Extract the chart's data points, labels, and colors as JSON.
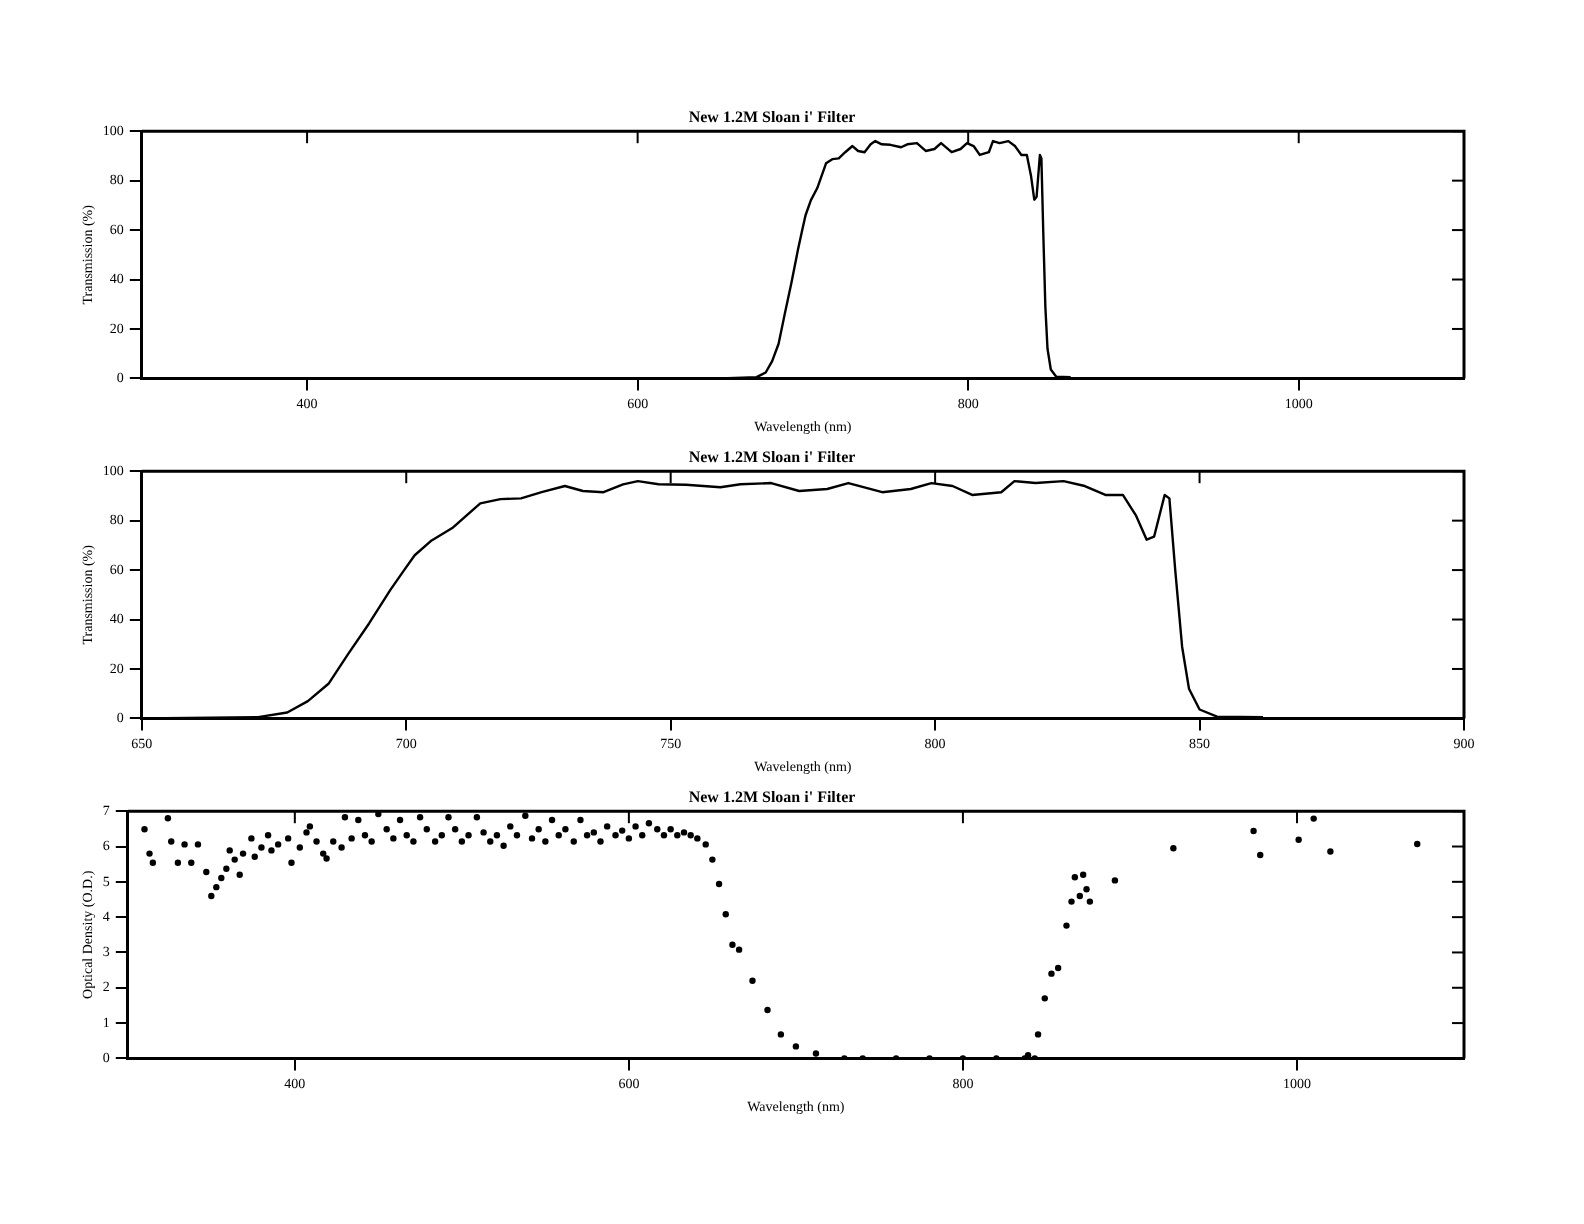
{
  "chart_data": [
    {
      "type": "line",
      "title": "New 1.2M Sloan i' Filter",
      "xlabel": "Wavelength (nm)",
      "ylabel": "Transmission (%)",
      "xlim": [
        300,
        1100
      ],
      "xticks": [
        400,
        600,
        800,
        1000
      ],
      "ylim": [
        0,
        100
      ],
      "yticks": [
        0,
        20,
        40,
        60,
        80,
        100
      ],
      "grid": false,
      "legend": false,
      "marker": "none",
      "line_style": "solid",
      "series": [
        {
          "color": "#000000",
          "x": [
            350,
            650,
            672,
            677.5,
            681.4,
            685.3,
            689,
            693,
            697,
            699.6,
            701.6,
            704.8,
            708.7,
            714,
            717.8,
            721.7,
            725.6,
            730,
            733.4,
            737.3,
            741,
            743.8,
            747.7,
            752.9,
            759.4,
            763.2,
            769,
            774.3,
            779.6,
            783.6,
            790,
            795.4,
            799.3,
            803.3,
            807,
            812.5,
            815,
            819,
            824.3,
            828.3,
            832.2,
            835.5,
            838,
            840,
            841.4,
            843.4,
            844.3,
            845.4,
            846.7,
            848,
            850,
            853.3,
            862
          ],
          "values": [
            0,
            0,
            0.5,
            2.4,
            7,
            14,
            26,
            38.5,
            52,
            60,
            66,
            72,
            77,
            87,
            88.7,
            89,
            91.5,
            94,
            92,
            91.5,
            94.7,
            96,
            94.7,
            94.5,
            93.5,
            94.7,
            95.2,
            92,
            92.8,
            95.2,
            91.5,
            92.8,
            95.2,
            94,
            90.4,
            91.5,
            96,
            95.2,
            96,
            94,
            90.4,
            90.4,
            82,
            72.3,
            73.5,
            90.4,
            89,
            60,
            29,
            12,
            3.6,
            0.7,
            0.5
          ]
        }
      ]
    },
    {
      "type": "line",
      "title": "New 1.2M Sloan i' Filter",
      "xlabel": "Wavelength (nm)",
      "ylabel": "Transmission (%)",
      "xlim": [
        650,
        900
      ],
      "xticks": [
        650,
        700,
        750,
        800,
        850,
        900
      ],
      "ylim": [
        0,
        100
      ],
      "yticks": [
        0,
        20,
        40,
        60,
        80,
        100
      ],
      "grid": false,
      "legend": false,
      "marker": "none",
      "line_style": "solid",
      "series": [
        {
          "color": "#000000",
          "x": [
            650,
            672,
            677.5,
            681.4,
            685.3,
            689,
            693,
            697,
            699.6,
            701.6,
            704.8,
            708.7,
            714,
            717.8,
            721.7,
            725.6,
            730,
            733.4,
            737.3,
            741,
            743.8,
            747.7,
            752.9,
            759.4,
            763.2,
            769,
            774.3,
            779.6,
            783.6,
            790,
            795.4,
            799.3,
            803.3,
            807,
            812.5,
            815,
            819,
            824.3,
            828.3,
            832.2,
            835.5,
            838,
            840,
            841.4,
            843.4,
            844.3,
            845.4,
            846.7,
            848,
            850,
            853.3,
            862
          ],
          "values": [
            0,
            0.5,
            2.4,
            7,
            14,
            26,
            38.5,
            52,
            60,
            66,
            72,
            77,
            87,
            88.7,
            89,
            91.5,
            94,
            92,
            91.5,
            94.7,
            96,
            94.7,
            94.5,
            93.5,
            94.7,
            95.2,
            92,
            92.8,
            95.2,
            91.5,
            92.8,
            95.2,
            94,
            90.4,
            91.5,
            96,
            95.2,
            96,
            94,
            90.4,
            90.4,
            82,
            72.3,
            73.5,
            90.4,
            89,
            60,
            29,
            12,
            3.6,
            0.7,
            0.5
          ]
        }
      ]
    },
    {
      "type": "scatter",
      "title": "New 1.2M Sloan i' Filter",
      "xlabel": "Wavelength (nm)",
      "ylabel": "Optical Density (O.D.)",
      "xlim": [
        300,
        1100
      ],
      "xticks": [
        400,
        600,
        800,
        1000
      ],
      "ylim": [
        0,
        7
      ],
      "yticks": [
        0,
        1,
        2,
        3,
        4,
        5,
        6,
        7
      ],
      "grid": false,
      "legend": false,
      "marker": "circle",
      "series": [
        {
          "color": "#000000",
          "x": [
            310,
            313,
            315,
            324,
            326,
            330,
            334,
            338,
            342,
            347,
            350,
            353,
            356,
            359,
            361,
            364,
            367,
            369,
            374,
            376,
            380,
            384,
            386,
            390,
            396,
            398,
            403,
            407,
            409,
            413,
            417,
            419,
            423,
            428,
            430,
            434,
            438,
            442,
            446,
            450,
            455,
            459,
            463,
            467,
            471,
            475,
            479,
            484,
            488,
            492,
            496,
            500,
            504,
            509,
            513,
            517,
            521,
            525,
            529,
            533,
            538,
            542,
            546,
            550,
            554,
            558,
            562,
            567,
            571,
            575,
            579,
            583,
            587,
            592,
            596,
            600,
            604,
            608,
            612,
            617,
            621,
            625,
            629,
            633,
            637,
            641,
            646,
            650,
            654,
            658,
            662,
            666,
            674,
            683,
            691,
            700,
            712,
            729,
            740,
            760,
            780,
            800,
            820,
            837,
            839,
            843,
            845,
            849,
            853,
            857,
            862,
            865,
            867,
            870,
            872,
            874,
            876,
            891,
            926,
            974,
            978,
            1001,
            1010,
            1020,
            1072
          ],
          "values": [
            6.49,
            5.8,
            5.54,
            6.8,
            6.14,
            5.54,
            6.06,
            5.54,
            6.06,
            5.28,
            4.6,
            4.85,
            5.11,
            5.37,
            5.89,
            5.63,
            5.2,
            5.8,
            6.23,
            5.71,
            5.97,
            6.32,
            5.89,
            6.06,
            6.23,
            5.54,
            5.97,
            6.4,
            6.57,
            6.14,
            5.8,
            5.66,
            6.14,
            5.97,
            6.83,
            6.23,
            6.75,
            6.32,
            6.14,
            6.92,
            6.49,
            6.23,
            6.75,
            6.32,
            6.14,
            6.83,
            6.49,
            6.14,
            6.32,
            6.83,
            6.49,
            6.14,
            6.32,
            6.83,
            6.4,
            6.14,
            6.32,
            6.02,
            6.57,
            6.32,
            6.87,
            6.23,
            6.49,
            6.14,
            6.75,
            6.32,
            6.49,
            6.14,
            6.75,
            6.32,
            6.4,
            6.14,
            6.57,
            6.32,
            6.45,
            6.23,
            6.57,
            6.32,
            6.66,
            6.49,
            6.32,
            6.49,
            6.32,
            6.4,
            6.32,
            6.23,
            6.06,
            5.63,
            4.94,
            4.08,
            3.22,
            3.08,
            2.2,
            1.37,
            0.68,
            0.34,
            0.14,
            0,
            0,
            0,
            0,
            0,
            0,
            0,
            0.09,
            0,
            0.68,
            1.7,
            2.4,
            2.56,
            3.76,
            4.44,
            5.13,
            4.6,
            5.2,
            4.79,
            4.44,
            5.04,
            5.95,
            6.44,
            5.76,
            6.19,
            6.79,
            5.86,
            6.07
          ]
        }
      ]
    }
  ]
}
